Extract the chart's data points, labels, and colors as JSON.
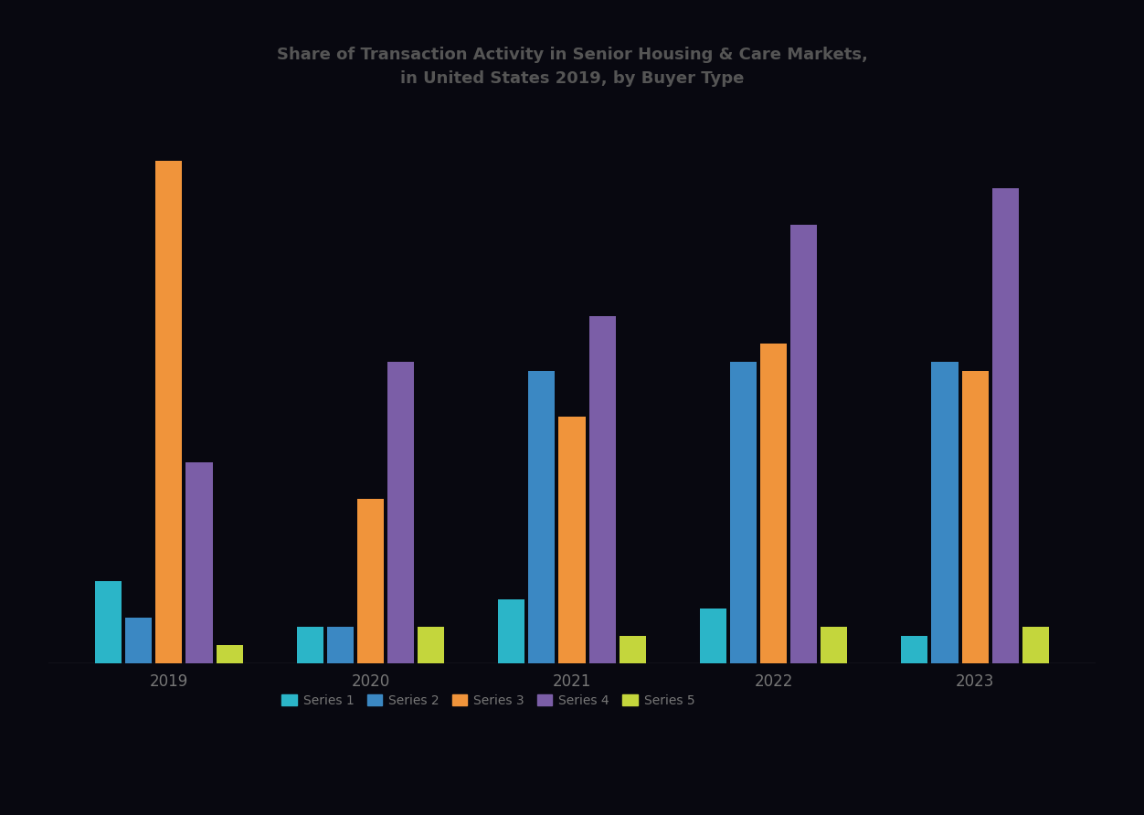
{
  "title_line1": "Share of Transaction Activity in Senior Housing & Care Markets,",
  "title_line2": "in United States 2019, by Buyer Type",
  "years": [
    "2019",
    "2020",
    "2021",
    "2022",
    "2023"
  ],
  "series": [
    {
      "name": "Series 1",
      "color": "#2BB5C8",
      "values": [
        9,
        4,
        7,
        6,
        3
      ]
    },
    {
      "name": "Series 2",
      "color": "#3B88C3",
      "values": [
        5,
        4,
        32,
        33,
        33
      ]
    },
    {
      "name": "Series 3",
      "color": "#F0943B",
      "values": [
        55,
        18,
        27,
        35,
        32
      ]
    },
    {
      "name": "Series 4",
      "color": "#7B5EA7",
      "values": [
        22,
        33,
        38,
        48,
        52
      ]
    },
    {
      "name": "Series 5",
      "color": "#C4D63C",
      "values": [
        2,
        4,
        3,
        4,
        4
      ]
    }
  ],
  "background_color": "#080810",
  "text_color": "#777777",
  "title_color": "#555555",
  "ylim": [
    0,
    60
  ],
  "bar_width": 0.15,
  "figsize": [
    12.52,
    8.92
  ],
  "dpi": 100,
  "legend_labels": [
    "Series 1",
    "Series 2",
    "Series 3",
    "Series 4",
    "Series 5"
  ]
}
